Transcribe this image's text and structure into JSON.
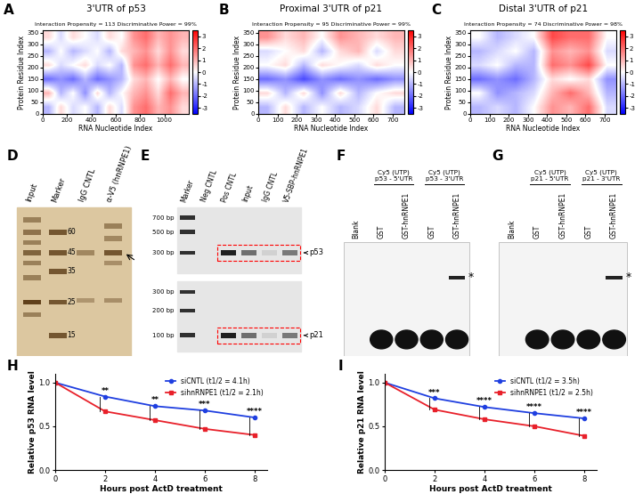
{
  "chart_data": [
    {
      "panel": "A",
      "type": "heatmap",
      "title": "3'UTR of p53",
      "subtitle": "Interaction Propensity = 113 Discriminative Power = 99%",
      "x_label": "RNA Nucleotide Index",
      "y_label": "Protein Residue Index",
      "xlim": [
        0,
        1200
      ],
      "xticks": [
        0,
        200,
        400,
        600,
        800,
        1000
      ],
      "ylim": [
        0,
        360
      ],
      "yticks": [
        0,
        50,
        100,
        150,
        200,
        250,
        300,
        350
      ],
      "cells": [
        [
          -1,
          0.5,
          -0.5,
          0,
          -1,
          0.5,
          -0.5,
          1.5,
          2,
          1,
          1.5,
          0.5
        ],
        [
          1,
          -1,
          0,
          -1.5,
          0.5,
          -1,
          0,
          1,
          1.5,
          0.5,
          2,
          1
        ],
        [
          -2,
          -1.5,
          -2,
          -1,
          -2,
          -1.5,
          -1,
          0.5,
          1,
          0,
          1,
          0
        ],
        [
          0.5,
          -0.5,
          0,
          0.5,
          -0.5,
          0,
          -1,
          1.5,
          2,
          1,
          2,
          1
        ],
        [
          -1,
          0,
          -1,
          -0.5,
          0,
          -1,
          0.5,
          1,
          1.5,
          0.5,
          1.5,
          0.5
        ],
        [
          0.5,
          -0.5,
          0.5,
          0,
          -0.5,
          0.5,
          0,
          1.5,
          2,
          1,
          1.5,
          1
        ]
      ],
      "colorbar_range": [
        -3.5,
        3.5
      ],
      "colorbar_ticks": [
        -3,
        -2,
        -1,
        0,
        1,
        2,
        3
      ]
    },
    {
      "panel": "B",
      "type": "heatmap",
      "title": "Proximal 3'UTR of p21",
      "subtitle": "Interaction Propensity = 95 Discriminative Power = 99%",
      "x_label": "RNA Nucleotide Index",
      "y_label": "Protein Residue Index",
      "xlim": [
        0,
        760
      ],
      "xticks": [
        0,
        100,
        200,
        300,
        400,
        500,
        600,
        700
      ],
      "ylim": [
        0,
        360
      ],
      "yticks": [
        0,
        50,
        100,
        150,
        200,
        250,
        300,
        350
      ],
      "cells": [
        [
          -1,
          0.5,
          -1,
          0,
          -1,
          -0.5,
          0.5,
          -1
        ],
        [
          0.5,
          -1,
          0.5,
          -1.5,
          0.5,
          -1,
          0,
          0.5
        ],
        [
          -2,
          -1.5,
          -2.5,
          -1.5,
          -2,
          -1.5,
          -2,
          -1.5
        ],
        [
          0,
          0.5,
          -1,
          0.5,
          0,
          -0.5,
          0.5,
          0
        ],
        [
          -0.5,
          0,
          0.5,
          -1,
          0.5,
          1,
          -0.5,
          0.5
        ],
        [
          1.5,
          0.5,
          1,
          0,
          1.5,
          1,
          0.5,
          1
        ]
      ],
      "colorbar_range": [
        -3.5,
        3.5
      ],
      "colorbar_ticks": [
        -3,
        -2,
        -1,
        0,
        1,
        2,
        3
      ]
    },
    {
      "panel": "C",
      "type": "heatmap",
      "title": "Distal 3'UTR of p21",
      "subtitle": "Interaction Propensity = 74 Discriminative Power = 98%",
      "x_label": "RNA Nucleotide Index",
      "y_label": "Protein Residue Index",
      "xlim": [
        0,
        760
      ],
      "xticks": [
        0,
        100,
        200,
        300,
        400,
        500,
        600,
        700
      ],
      "ylim": [
        0,
        360
      ],
      "yticks": [
        0,
        50,
        100,
        150,
        200,
        250,
        300,
        350
      ],
      "cells": [
        [
          -1,
          -0.5,
          -1,
          0,
          1.5,
          1,
          2,
          -0.5
        ],
        [
          0,
          -1.5,
          -1,
          -0.5,
          1,
          2,
          1,
          -1
        ],
        [
          -2,
          -1.5,
          -2,
          -1,
          0.5,
          0,
          0.5,
          -1.5
        ],
        [
          -0.5,
          0,
          -1,
          -1,
          2,
          1.5,
          2.5,
          0
        ],
        [
          -1,
          -0.5,
          0,
          -1,
          1.5,
          1,
          1.5,
          -0.5
        ],
        [
          0,
          -1,
          -0.5,
          0,
          2.5,
          2,
          2,
          0
        ]
      ],
      "colorbar_range": [
        -3.5,
        3.5
      ],
      "colorbar_ticks": [
        -3,
        -2,
        -1,
        0,
        1,
        2,
        3
      ]
    },
    {
      "panel": "H",
      "type": "line",
      "x_label": "Hours post ActD treatment",
      "y_label": "Relative p53 RNA level",
      "x": [
        0,
        2,
        4,
        6,
        8
      ],
      "xlim": [
        0,
        8.5
      ],
      "xticks": [
        0,
        2,
        4,
        6,
        8
      ],
      "ylim": [
        0,
        1.1
      ],
      "yticks": [
        {
          "value": 0,
          "label": "0.0"
        },
        {
          "value": 0.5,
          "label": "0.5"
        },
        {
          "value": 1,
          "label": "1.0"
        }
      ],
      "legend": "upper right",
      "series": [
        {
          "name": "siCNTL (t1/2 = 4.1h)",
          "color": "#1f3fe0",
          "marker": "o",
          "values": [
            1.0,
            0.84,
            0.73,
            0.68,
            0.6
          ]
        },
        {
          "name": "sihnRNPE1 (t1/2 = 2.1h)",
          "color": "#e8202a",
          "marker": "s",
          "values": [
            1.0,
            0.67,
            0.57,
            0.47,
            0.4
          ]
        }
      ],
      "annotations": [
        {
          "x": 2,
          "text": "**"
        },
        {
          "x": 4,
          "text": "**"
        },
        {
          "x": 6,
          "text": "***"
        },
        {
          "x": 8,
          "text": "****"
        }
      ]
    },
    {
      "panel": "I",
      "type": "line",
      "x_label": "Hours post ActD treatment",
      "y_label": "Relative p21 RNA level",
      "x": [
        0,
        2,
        4,
        6,
        8
      ],
      "xlim": [
        0,
        8.5
      ],
      "xticks": [
        0,
        2,
        4,
        6,
        8
      ],
      "ylim": [
        0,
        1.1
      ],
      "yticks": [
        {
          "value": 0,
          "label": "0.0"
        },
        {
          "value": 0.5,
          "label": "0.5"
        },
        {
          "value": 1,
          "label": "1.0"
        }
      ],
      "legend": "upper right",
      "series": [
        {
          "name": "siCNTL (t1/2 = 3.5h)",
          "color": "#1f3fe0",
          "marker": "o",
          "values": [
            1.0,
            0.82,
            0.72,
            0.65,
            0.59
          ]
        },
        {
          "name": "sihnRNPE1 (t1/2 = 2.5h)",
          "color": "#e8202a",
          "marker": "s",
          "values": [
            1.0,
            0.69,
            0.58,
            0.5,
            0.39
          ]
        }
      ],
      "annotations": [
        {
          "x": 2,
          "text": "***"
        },
        {
          "x": 4,
          "text": "****"
        },
        {
          "x": 6,
          "text": "****"
        },
        {
          "x": 8,
          "text": "****"
        }
      ]
    }
  ],
  "gels": [
    {
      "panel": "D",
      "lanes": [
        "Input",
        "Marker",
        "IgG CNTL",
        "α-V5 (hnRNPE1)"
      ],
      "marker_kda": [
        60,
        45,
        35,
        25,
        15
      ]
    },
    {
      "panel": "E",
      "lanes": [
        "Marker",
        "Neg CNTL",
        "Pos CNTL",
        "Input",
        "IgG CNTL",
        "V5-SBP-hnRNPE1"
      ],
      "markers_top": [
        "700 bp",
        "500 bp",
        "300 bp"
      ],
      "markers_bottom": [
        "300 bp",
        "200 bp",
        "100 bp"
      ],
      "targets": [
        "p53",
        "p21"
      ]
    },
    {
      "panel": "F",
      "blank_lane": "Blank",
      "groups": [
        {
          "dye": "Cy5 (UTP)",
          "probe": "p53 - 5'UTR",
          "lanes": [
            "GST",
            "GST-hnRNPE1"
          ]
        },
        {
          "dye": "Cy5 (UTP)",
          "probe": "p53 - 3'UTR",
          "lanes": [
            "GST",
            "GST-hnRNPE1"
          ]
        }
      ],
      "shift_mark": "*"
    },
    {
      "panel": "G",
      "blank_lane": "Blank",
      "groups": [
        {
          "dye": "Cy5 (UTP)",
          "probe": "p21 - 5'UTR",
          "lanes": [
            "GST",
            "GST-hnRNPE1"
          ]
        },
        {
          "dye": "Cy5 (UTP)",
          "probe": "p21 - 3'UTR",
          "lanes": [
            "GST",
            "GST-hnRNPE1"
          ]
        }
      ],
      "shift_mark": "*"
    }
  ]
}
